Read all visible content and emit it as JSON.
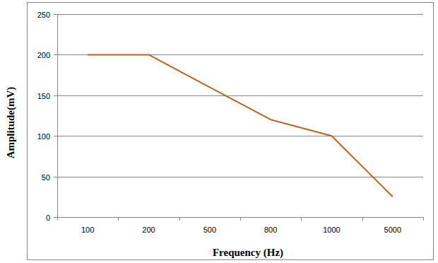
{
  "chart_data": {
    "type": "line",
    "x_label": "Frequency (Hz)",
    "y_label": "Amplitude(mV)",
    "categories": [
      "100",
      "200",
      "500",
      "800",
      "1000",
      "5000"
    ],
    "values": [
      200,
      200,
      160,
      120,
      100,
      25
    ],
    "color": "#c0621c",
    "ylim": [
      0,
      250
    ],
    "yticks": [
      0,
      50,
      100,
      150,
      200,
      250
    ],
    "grid": true
  }
}
